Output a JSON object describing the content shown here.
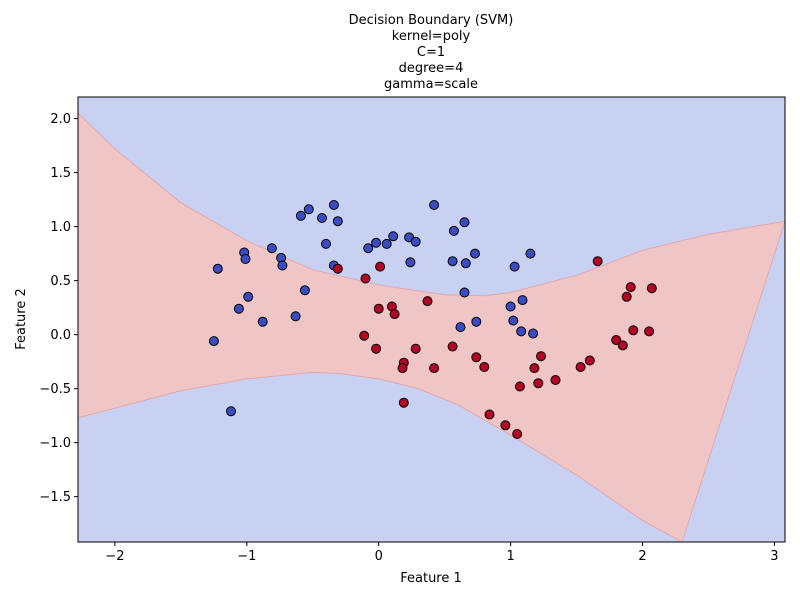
{
  "chart_data": {
    "type": "scatter",
    "title_lines": [
      "Decision Boundary (SVM)",
      "kernel=poly",
      "C=1",
      "degree=4",
      "gamma=scale"
    ],
    "xlabel": "Feature 1",
    "ylabel": "Feature 2",
    "xlim": [
      -2.28,
      3.08
    ],
    "ylim": [
      -1.92,
      2.2
    ],
    "xticks": [
      -2,
      -1,
      0,
      1,
      2,
      3
    ],
    "xtick_labels": [
      "−2",
      "−1",
      "0",
      "1",
      "2",
      "3"
    ],
    "yticks": [
      -1.5,
      -1.0,
      -0.5,
      0.0,
      0.5,
      1.0,
      1.5,
      2.0
    ],
    "ytick_labels": [
      "−1.5",
      "−1.0",
      "−0.5",
      "0.0",
      "0.5",
      "1.0",
      "1.5",
      "2.0"
    ],
    "grid": false,
    "colors": {
      "class0_point": "#3b4cc0",
      "class1_point": "#b40426",
      "class0_region": "#c9d1f2",
      "class1_region": "#f0c5c5",
      "edge": "#000000"
    },
    "series": [
      {
        "class": 0,
        "points": [
          [
            -1.22,
            0.61
          ],
          [
            -1.25,
            -0.06
          ],
          [
            -1.12,
            -0.71
          ],
          [
            -1.02,
            0.76
          ],
          [
            -1.01,
            0.7
          ],
          [
            -0.99,
            0.35
          ],
          [
            -1.06,
            0.24
          ],
          [
            -0.88,
            0.12
          ],
          [
            -0.81,
            0.8
          ],
          [
            -0.74,
            0.71
          ],
          [
            -0.73,
            0.64
          ],
          [
            -0.63,
            0.17
          ],
          [
            -0.59,
            1.1
          ],
          [
            -0.53,
            1.16
          ],
          [
            -0.56,
            0.41
          ],
          [
            -0.43,
            1.08
          ],
          [
            -0.4,
            0.84
          ],
          [
            -0.34,
            1.2
          ],
          [
            -0.31,
            1.05
          ],
          [
            -0.34,
            0.64
          ],
          [
            -0.08,
            0.8
          ],
          [
            -0.02,
            0.85
          ],
          [
            0.06,
            0.84
          ],
          [
            0.11,
            0.91
          ],
          [
            0.23,
            0.9
          ],
          [
            0.28,
            0.86
          ],
          [
            0.24,
            0.67
          ],
          [
            0.42,
            1.2
          ],
          [
            0.57,
            0.96
          ],
          [
            0.65,
            1.04
          ],
          [
            0.56,
            0.68
          ],
          [
            0.66,
            0.66
          ],
          [
            0.73,
            0.75
          ],
          [
            0.65,
            0.39
          ],
          [
            0.62,
            0.07
          ],
          [
            0.74,
            0.12
          ],
          [
            1.0,
            0.26
          ],
          [
            1.02,
            0.13
          ],
          [
            1.03,
            0.63
          ],
          [
            1.09,
            0.32
          ],
          [
            1.15,
            0.75
          ],
          [
            1.08,
            0.03
          ],
          [
            1.17,
            0.01
          ]
        ]
      },
      {
        "class": 1,
        "points": [
          [
            -0.31,
            0.61
          ],
          [
            0.01,
            0.63
          ],
          [
            -0.1,
            0.52
          ],
          [
            0.0,
            0.24
          ],
          [
            0.1,
            0.26
          ],
          [
            0.12,
            0.19
          ],
          [
            0.37,
            0.31
          ],
          [
            -0.11,
            -0.01
          ],
          [
            -0.02,
            -0.13
          ],
          [
            0.19,
            -0.26
          ],
          [
            0.18,
            -0.31
          ],
          [
            0.28,
            -0.13
          ],
          [
            0.19,
            -0.63
          ],
          [
            0.42,
            -0.31
          ],
          [
            0.56,
            -0.11
          ],
          [
            0.74,
            -0.21
          ],
          [
            0.8,
            -0.3
          ],
          [
            0.84,
            -0.74
          ],
          [
            0.96,
            -0.84
          ],
          [
            1.05,
            -0.92
          ],
          [
            1.07,
            -0.48
          ],
          [
            1.18,
            -0.31
          ],
          [
            1.21,
            -0.45
          ],
          [
            1.23,
            -0.2
          ],
          [
            1.34,
            -0.42
          ],
          [
            1.53,
            -0.3
          ],
          [
            1.6,
            -0.24
          ],
          [
            1.66,
            0.68
          ],
          [
            1.8,
            -0.05
          ],
          [
            1.85,
            -0.1
          ],
          [
            1.88,
            0.35
          ],
          [
            1.91,
            0.44
          ],
          [
            1.93,
            0.04
          ],
          [
            2.05,
            0.03
          ],
          [
            2.07,
            0.43
          ]
        ]
      }
    ],
    "boundary": {
      "upper": [
        [
          -2.28,
          2.05
        ],
        [
          -2.0,
          1.72
        ],
        [
          -1.5,
          1.22
        ],
        [
          -1.0,
          0.87
        ],
        [
          -0.5,
          0.6
        ],
        [
          0.0,
          0.46
        ],
        [
          0.5,
          0.37
        ],
        [
          0.8,
          0.36
        ],
        [
          1.0,
          0.39
        ],
        [
          1.5,
          0.55
        ],
        [
          2.0,
          0.78
        ],
        [
          2.5,
          0.93
        ],
        [
          3.08,
          1.05
        ]
      ],
      "lower": [
        [
          -2.28,
          -0.77
        ],
        [
          -2.0,
          -0.68
        ],
        [
          -1.5,
          -0.52
        ],
        [
          -1.0,
          -0.41
        ],
        [
          -0.5,
          -0.35
        ],
        [
          -0.3,
          -0.36
        ],
        [
          0.0,
          -0.41
        ],
        [
          0.3,
          -0.5
        ],
        [
          0.6,
          -0.65
        ],
        [
          1.0,
          -0.93
        ],
        [
          1.5,
          -1.3
        ],
        [
          2.0,
          -1.72
        ],
        [
          2.3,
          -1.92
        ]
      ]
    }
  }
}
